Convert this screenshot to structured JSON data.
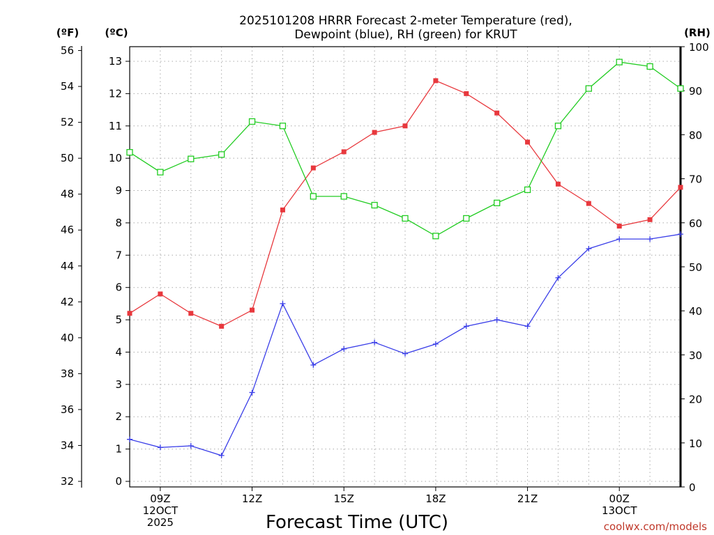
{
  "chart_data": {
    "type": "line",
    "title_lines": [
      "2025101208 HRRR Forecast 2-meter Temperature (red),",
      "Dewpoint (blue), RH (green) for KRUT"
    ],
    "xlabel": "Forecast Time (UTC)",
    "unit_labels": {
      "fahrenheit": "(ºF)",
      "celsius": "(ºC)",
      "rh": "(RH)"
    },
    "x_ticks": [
      {
        "hour": 9,
        "lines": [
          "09Z",
          "12OCT",
          "2025"
        ]
      },
      {
        "hour": 12,
        "lines": [
          "12Z"
        ]
      },
      {
        "hour": 15,
        "lines": [
          "15Z"
        ]
      },
      {
        "hour": 18,
        "lines": [
          "18Z"
        ]
      },
      {
        "hour": 21,
        "lines": [
          "21Z"
        ]
      },
      {
        "hour": 24,
        "lines": [
          "00Z",
          "13OCT"
        ]
      }
    ],
    "xlim": [
      8,
      26
    ],
    "y_celsius": {
      "lim": [
        0,
        13
      ],
      "ticks": [
        0,
        1,
        2,
        3,
        4,
        5,
        6,
        7,
        8,
        9,
        10,
        11,
        12,
        13
      ]
    },
    "y_fahrenheit": {
      "ticks": [
        32,
        34,
        36,
        38,
        40,
        42,
        44,
        46,
        48,
        50,
        52,
        54,
        56
      ]
    },
    "y_rh": {
      "lim": [
        0,
        100
      ],
      "ticks": [
        0,
        10,
        20,
        30,
        40,
        50,
        60,
        70,
        80,
        90,
        100
      ]
    },
    "x_hours": [
      8,
      9,
      10,
      11,
      12,
      13,
      14,
      15,
      16,
      17,
      18,
      19,
      20,
      21,
      22,
      23,
      24,
      25,
      26
    ],
    "series": [
      {
        "name": "Temperature",
        "color": "#e8383d",
        "marker": "filled-square",
        "axis": "celsius",
        "values": [
          5.2,
          5.8,
          5.2,
          4.8,
          5.3,
          8.4,
          9.7,
          10.2,
          10.8,
          11.0,
          12.4,
          12.0,
          11.4,
          10.5,
          9.2,
          8.6,
          7.9,
          8.1,
          9.1
        ]
      },
      {
        "name": "Dewpoint",
        "color": "#3a3ee8",
        "marker": "plus",
        "axis": "celsius",
        "values": [
          1.3,
          1.05,
          1.1,
          0.8,
          2.75,
          5.5,
          3.6,
          4.1,
          4.3,
          3.95,
          4.25,
          4.8,
          5.0,
          4.8,
          6.3,
          7.2,
          7.5,
          7.5,
          7.65
        ]
      },
      {
        "name": "RH",
        "color": "#22cc22",
        "marker": "open-square",
        "axis": "rh",
        "values": [
          76,
          71.5,
          74.5,
          75.5,
          83,
          82,
          66,
          66,
          64,
          61,
          57,
          61,
          64.5,
          67.5,
          82,
          90.5,
          96.5,
          95.5,
          90.5
        ]
      }
    ]
  },
  "credit": "coolwx.com/models"
}
